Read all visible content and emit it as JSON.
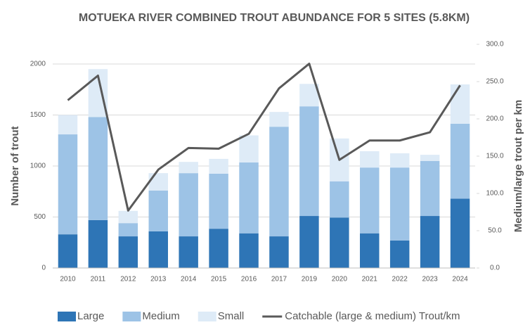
{
  "chart_data": {
    "type": "bar",
    "stacked": true,
    "title": "MOTUEKA RIVER COMBINED TROUT ABUNDANCE FOR 5 SITES (5.8KM)",
    "y_label": "Number of trout",
    "y2_label": "Medium/large trout per km",
    "categories": [
      "2010",
      "2011",
      "2012",
      "2013",
      "2014",
      "2015",
      "2016",
      "2017",
      "2019",
      "2020",
      "2021",
      "2022",
      "2023",
      "2024"
    ],
    "series": [
      {
        "name": "Large",
        "color": "#2e75b6",
        "values": [
          330,
          470,
          310,
          360,
          310,
          385,
          340,
          310,
          510,
          495,
          340,
          270,
          510,
          680
        ]
      },
      {
        "name": "Medium",
        "color": "#9dc3e6",
        "values": [
          980,
          1010,
          130,
          400,
          620,
          540,
          695,
          1075,
          1075,
          355,
          645,
          715,
          540,
          735
        ]
      },
      {
        "name": "Small",
        "color": "#deebf7",
        "values": [
          190,
          470,
          120,
          170,
          110,
          145,
          265,
          145,
          220,
          420,
          160,
          140,
          60,
          385
        ]
      },
      {
        "name": "Catchable (large & medium) Trout/km",
        "type": "line",
        "axis": "y2",
        "color": "#595959",
        "values": [
          225,
          258,
          77,
          132,
          161,
          160,
          180,
          241,
          274,
          145,
          171,
          171,
          182,
          245
        ]
      }
    ],
    "ylim": [
      0,
      2000
    ],
    "yticks": [
      0,
      500,
      1000,
      1500,
      2000
    ],
    "y2lim": [
      0,
      300
    ],
    "y2ticks": [
      {
        "value": 0,
        "label": "0.0"
      },
      {
        "value": 50,
        "label": "50.0"
      },
      {
        "value": 100,
        "label": "100.0"
      },
      {
        "value": 150,
        "label": "150.0"
      },
      {
        "value": 200,
        "label": "200.0"
      },
      {
        "value": 250,
        "label": "250.0"
      },
      {
        "value": 300,
        "label": "300.0"
      }
    ],
    "grid": true,
    "legend": "bottom"
  }
}
